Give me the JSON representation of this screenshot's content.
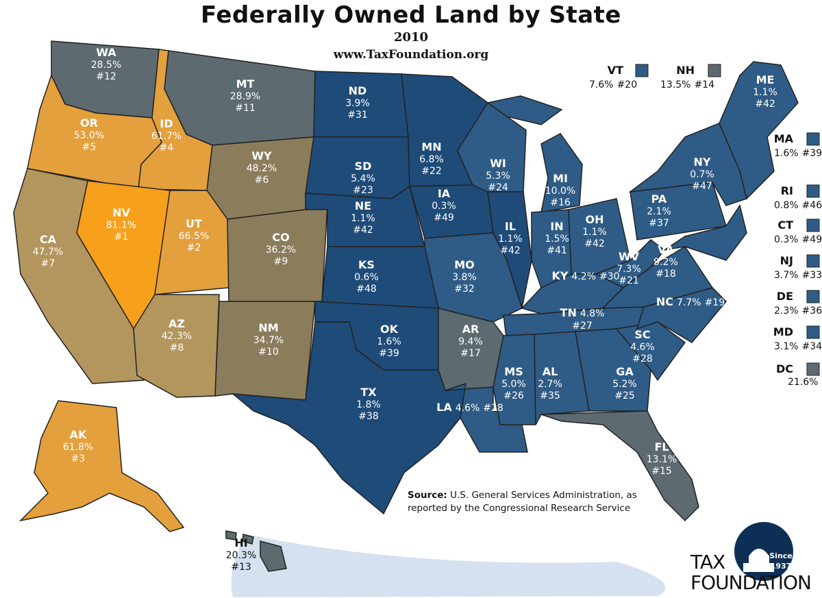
{
  "header": {
    "title": "Federally Owned Land by State",
    "year": "2010",
    "url": "www.TaxFoundation.org"
  },
  "colors": {
    "nevada": "#f7a01c",
    "high": "#e3a03c",
    "mid_high": "#b3955e",
    "mid": "#8b7d5c",
    "gray": "#5d6a70",
    "blue": "#1f4b78",
    "blue_light": "#2f5c86",
    "ocean_shadow": "#c7d7ea"
  },
  "states": [
    {
      "abbr": "WA",
      "value": "28.5%",
      "rank": "#12"
    },
    {
      "abbr": "OR",
      "value": "53.0%",
      "rank": "#5"
    },
    {
      "abbr": "ID",
      "value": "61.7%",
      "rank": "#4"
    },
    {
      "abbr": "MT",
      "value": "28.9%",
      "rank": "#11"
    },
    {
      "abbr": "WY",
      "value": "48.2%",
      "rank": "#6"
    },
    {
      "abbr": "NV",
      "value": "81.1%",
      "rank": "#1"
    },
    {
      "abbr": "CA",
      "value": "47.7%",
      "rank": "#7"
    },
    {
      "abbr": "UT",
      "value": "66.5%",
      "rank": "#2"
    },
    {
      "abbr": "CO",
      "value": "36.2%",
      "rank": "#9"
    },
    {
      "abbr": "AZ",
      "value": "42.3%",
      "rank": "#8"
    },
    {
      "abbr": "NM",
      "value": "34.7%",
      "rank": "#10"
    },
    {
      "abbr": "ND",
      "value": "3.9%",
      "rank": "#31"
    },
    {
      "abbr": "SD",
      "value": "5.4%",
      "rank": "#23"
    },
    {
      "abbr": "NE",
      "value": "1.1%",
      "rank": "#42"
    },
    {
      "abbr": "KS",
      "value": "0.6%",
      "rank": "#48"
    },
    {
      "abbr": "OK",
      "value": "1.6%",
      "rank": "#39"
    },
    {
      "abbr": "TX",
      "value": "1.8%",
      "rank": "#38"
    },
    {
      "abbr": "MN",
      "value": "6.8%",
      "rank": "#22"
    },
    {
      "abbr": "IA",
      "value": "0.3%",
      "rank": "#49"
    },
    {
      "abbr": "MO",
      "value": "3.8%",
      "rank": "#32"
    },
    {
      "abbr": "AR",
      "value": "9.4%",
      "rank": "#17"
    },
    {
      "abbr": "LA",
      "value": "4.6%",
      "rank": "#28"
    },
    {
      "abbr": "WI",
      "value": "5.3%",
      "rank": "#24"
    },
    {
      "abbr": "IL",
      "value": "1.1%",
      "rank": "#42"
    },
    {
      "abbr": "MS",
      "value": "5.0%",
      "rank": "#26"
    },
    {
      "abbr": "MI",
      "value": "10.0%",
      "rank": "#16"
    },
    {
      "abbr": "IN",
      "value": "1.5%",
      "rank": "#41"
    },
    {
      "abbr": "KY",
      "value": "4.2%",
      "rank": "#30"
    },
    {
      "abbr": "TN",
      "value": "4.8%",
      "rank": "#27"
    },
    {
      "abbr": "AL",
      "value": "2.7%",
      "rank": "#35"
    },
    {
      "abbr": "OH",
      "value": "1.1%",
      "rank": "#42"
    },
    {
      "abbr": "WV",
      "value": "7.3%",
      "rank": "#21"
    },
    {
      "abbr": "VA",
      "value": "9.2%",
      "rank": "#18"
    },
    {
      "abbr": "NC",
      "value": "7.7%",
      "rank": "#19"
    },
    {
      "abbr": "SC",
      "value": "4.6%",
      "rank": "#28"
    },
    {
      "abbr": "GA",
      "value": "5.2%",
      "rank": "#25"
    },
    {
      "abbr": "FL",
      "value": "13.1%",
      "rank": "#15"
    },
    {
      "abbr": "PA",
      "value": "2.1%",
      "rank": "#37"
    },
    {
      "abbr": "NY",
      "value": "0.7%",
      "rank": "#47"
    },
    {
      "abbr": "ME",
      "value": "1.1%",
      "rank": "#42"
    },
    {
      "abbr": "AK",
      "value": "61.8%",
      "rank": "#3"
    },
    {
      "abbr": "HI",
      "value": "20.3%",
      "rank": "#13"
    }
  ],
  "small_states": [
    {
      "abbr": "VT",
      "value": "7.6%",
      "rank": "#20"
    },
    {
      "abbr": "NH",
      "value": "13.5%",
      "rank": "#14"
    },
    {
      "abbr": "MA",
      "value": "1.6%",
      "rank": "#39"
    },
    {
      "abbr": "RI",
      "value": "0.8%",
      "rank": "#46"
    },
    {
      "abbr": "CT",
      "value": "0.3%",
      "rank": "#49"
    },
    {
      "abbr": "NJ",
      "value": "3.7%",
      "rank": "#33"
    },
    {
      "abbr": "DE",
      "value": "2.3%",
      "rank": "#36"
    },
    {
      "abbr": "MD",
      "value": "3.1%",
      "rank": "#34"
    },
    {
      "abbr": "DC",
      "value": "21.6%",
      "rank": ""
    }
  ],
  "source": {
    "label": "Source:",
    "text": "U.S. General Services Administration, as reported by the Congressional Research Service"
  },
  "logo": {
    "since": "Since",
    "year": "1937",
    "word1": "TAX",
    "word2": "FOUNDATION"
  }
}
